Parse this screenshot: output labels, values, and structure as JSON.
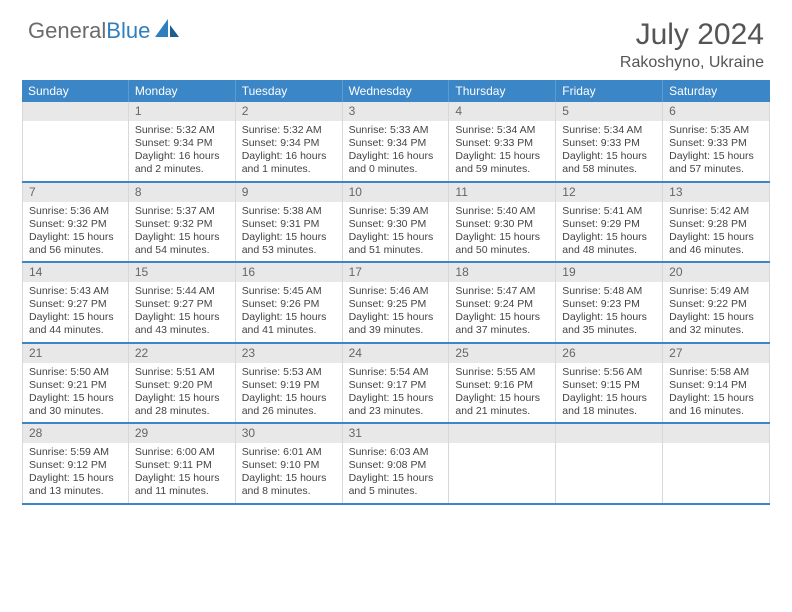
{
  "brand": {
    "name_gray": "General",
    "name_blue": "Blue"
  },
  "title": "July 2024",
  "location": "Rakoshyno, Ukraine",
  "colors": {
    "header_bg": "#3b86c6",
    "header_text": "#ffffff",
    "daynum_bg": "#e8e8e8",
    "border_blue": "#3b86c6",
    "text": "#444444",
    "logo_gray": "#6b6b6b",
    "logo_blue": "#2f7fbf"
  },
  "day_names": [
    "Sunday",
    "Monday",
    "Tuesday",
    "Wednesday",
    "Thursday",
    "Friday",
    "Saturday"
  ],
  "start_offset": 1,
  "days": [
    {
      "n": 1,
      "sunrise": "5:32 AM",
      "sunset": "9:34 PM",
      "daylight": "16 hours and 2 minutes."
    },
    {
      "n": 2,
      "sunrise": "5:32 AM",
      "sunset": "9:34 PM",
      "daylight": "16 hours and 1 minutes."
    },
    {
      "n": 3,
      "sunrise": "5:33 AM",
      "sunset": "9:34 PM",
      "daylight": "16 hours and 0 minutes."
    },
    {
      "n": 4,
      "sunrise": "5:34 AM",
      "sunset": "9:33 PM",
      "daylight": "15 hours and 59 minutes."
    },
    {
      "n": 5,
      "sunrise": "5:34 AM",
      "sunset": "9:33 PM",
      "daylight": "15 hours and 58 minutes."
    },
    {
      "n": 6,
      "sunrise": "5:35 AM",
      "sunset": "9:33 PM",
      "daylight": "15 hours and 57 minutes."
    },
    {
      "n": 7,
      "sunrise": "5:36 AM",
      "sunset": "9:32 PM",
      "daylight": "15 hours and 56 minutes."
    },
    {
      "n": 8,
      "sunrise": "5:37 AM",
      "sunset": "9:32 PM",
      "daylight": "15 hours and 54 minutes."
    },
    {
      "n": 9,
      "sunrise": "5:38 AM",
      "sunset": "9:31 PM",
      "daylight": "15 hours and 53 minutes."
    },
    {
      "n": 10,
      "sunrise": "5:39 AM",
      "sunset": "9:30 PM",
      "daylight": "15 hours and 51 minutes."
    },
    {
      "n": 11,
      "sunrise": "5:40 AM",
      "sunset": "9:30 PM",
      "daylight": "15 hours and 50 minutes."
    },
    {
      "n": 12,
      "sunrise": "5:41 AM",
      "sunset": "9:29 PM",
      "daylight": "15 hours and 48 minutes."
    },
    {
      "n": 13,
      "sunrise": "5:42 AM",
      "sunset": "9:28 PM",
      "daylight": "15 hours and 46 minutes."
    },
    {
      "n": 14,
      "sunrise": "5:43 AM",
      "sunset": "9:27 PM",
      "daylight": "15 hours and 44 minutes."
    },
    {
      "n": 15,
      "sunrise": "5:44 AM",
      "sunset": "9:27 PM",
      "daylight": "15 hours and 43 minutes."
    },
    {
      "n": 16,
      "sunrise": "5:45 AM",
      "sunset": "9:26 PM",
      "daylight": "15 hours and 41 minutes."
    },
    {
      "n": 17,
      "sunrise": "5:46 AM",
      "sunset": "9:25 PM",
      "daylight": "15 hours and 39 minutes."
    },
    {
      "n": 18,
      "sunrise": "5:47 AM",
      "sunset": "9:24 PM",
      "daylight": "15 hours and 37 minutes."
    },
    {
      "n": 19,
      "sunrise": "5:48 AM",
      "sunset": "9:23 PM",
      "daylight": "15 hours and 35 minutes."
    },
    {
      "n": 20,
      "sunrise": "5:49 AM",
      "sunset": "9:22 PM",
      "daylight": "15 hours and 32 minutes."
    },
    {
      "n": 21,
      "sunrise": "5:50 AM",
      "sunset": "9:21 PM",
      "daylight": "15 hours and 30 minutes."
    },
    {
      "n": 22,
      "sunrise": "5:51 AM",
      "sunset": "9:20 PM",
      "daylight": "15 hours and 28 minutes."
    },
    {
      "n": 23,
      "sunrise": "5:53 AM",
      "sunset": "9:19 PM",
      "daylight": "15 hours and 26 minutes."
    },
    {
      "n": 24,
      "sunrise": "5:54 AM",
      "sunset": "9:17 PM",
      "daylight": "15 hours and 23 minutes."
    },
    {
      "n": 25,
      "sunrise": "5:55 AM",
      "sunset": "9:16 PM",
      "daylight": "15 hours and 21 minutes."
    },
    {
      "n": 26,
      "sunrise": "5:56 AM",
      "sunset": "9:15 PM",
      "daylight": "15 hours and 18 minutes."
    },
    {
      "n": 27,
      "sunrise": "5:58 AM",
      "sunset": "9:14 PM",
      "daylight": "15 hours and 16 minutes."
    },
    {
      "n": 28,
      "sunrise": "5:59 AM",
      "sunset": "9:12 PM",
      "daylight": "15 hours and 13 minutes."
    },
    {
      "n": 29,
      "sunrise": "6:00 AM",
      "sunset": "9:11 PM",
      "daylight": "15 hours and 11 minutes."
    },
    {
      "n": 30,
      "sunrise": "6:01 AM",
      "sunset": "9:10 PM",
      "daylight": "15 hours and 8 minutes."
    },
    {
      "n": 31,
      "sunrise": "6:03 AM",
      "sunset": "9:08 PM",
      "daylight": "15 hours and 5 minutes."
    }
  ],
  "labels": {
    "sunrise": "Sunrise:",
    "sunset": "Sunset:",
    "daylight": "Daylight:"
  }
}
